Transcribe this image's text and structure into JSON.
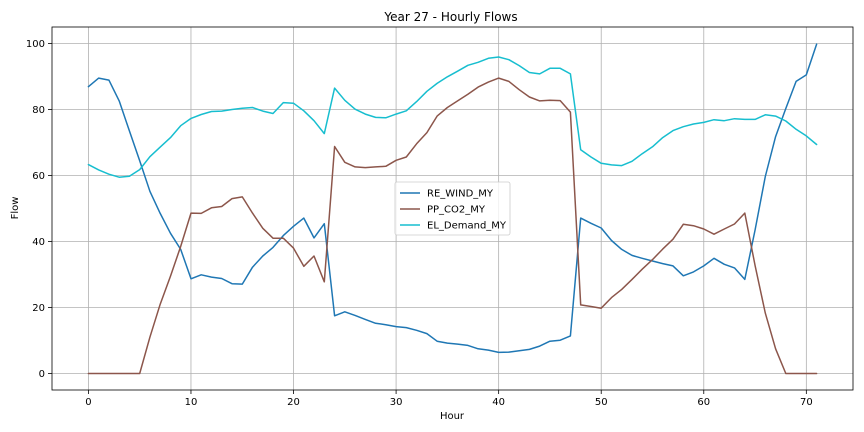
{
  "chart_data": {
    "type": "line",
    "title": "Year 27 - Hourly Flows",
    "xlabel": "Hour",
    "ylabel": "Flow",
    "xlim": [
      -3.55,
      74.55
    ],
    "ylim": [
      -5,
      105
    ],
    "xticks": [
      0,
      10,
      20,
      30,
      40,
      50,
      60,
      70
    ],
    "yticks": [
      0,
      20,
      40,
      60,
      80,
      100
    ],
    "grid": true,
    "legend_position": "center",
    "x": [
      0,
      1,
      2,
      3,
      4,
      5,
      6,
      7,
      8,
      9,
      10,
      11,
      12,
      13,
      14,
      15,
      16,
      17,
      18,
      19,
      20,
      21,
      22,
      23,
      24,
      25,
      26,
      27,
      28,
      29,
      30,
      31,
      32,
      33,
      34,
      35,
      36,
      37,
      38,
      39,
      40,
      41,
      42,
      43,
      44,
      45,
      46,
      47,
      48,
      49,
      50,
      51,
      52,
      53,
      54,
      55,
      56,
      57,
      58,
      59,
      60,
      61,
      62,
      63,
      64,
      65,
      66,
      67,
      68,
      69,
      70,
      71
    ],
    "series": [
      {
        "name": "RE_WIND_MY",
        "color": "#1f77b4",
        "values": [
          86.9,
          89.5,
          88.9,
          82.6,
          73.5,
          64.5,
          55.2,
          48.5,
          42.5,
          37.6,
          28.7,
          29.9,
          29.2,
          28.8,
          27.2,
          27.1,
          32.2,
          35.6,
          38.2,
          41.8,
          44.6,
          47.1,
          41.1,
          45.4,
          17.5,
          18.7,
          17.6,
          16.4,
          15.2,
          14.8,
          14.2,
          13.9,
          13.1,
          12.1,
          9.8,
          9.2,
          8.9,
          8.5,
          7.5,
          7.1,
          6.4,
          6.5,
          6.9,
          7.3,
          8.3,
          9.8,
          10.1,
          11.4,
          47.1,
          45.5,
          44.1,
          40.3,
          37.6,
          35.8,
          34.9,
          34.1,
          33.3,
          32.6,
          29.6,
          30.8,
          32.6,
          34.9,
          33.1,
          32.0,
          28.5,
          43.5,
          59.7,
          71.8,
          80.3,
          88.5,
          90.5,
          99.8
        ]
      },
      {
        "name": "PP_CO2_MY",
        "color": "#8c564b",
        "values": [
          0,
          0,
          0,
          0,
          0,
          0,
          11.0,
          21.0,
          29.5,
          38.5,
          48.6,
          48.5,
          50.2,
          50.6,
          53.0,
          53.5,
          48.6,
          44.0,
          41.0,
          41.0,
          38.0,
          32.5,
          35.6,
          27.8,
          68.8,
          64.0,
          62.6,
          62.4,
          62.6,
          62.8,
          64.6,
          65.6,
          69.6,
          73.0,
          78.0,
          80.6,
          82.6,
          84.6,
          86.8,
          88.3,
          89.5,
          88.5,
          86.0,
          83.8,
          82.6,
          82.8,
          82.7,
          79.2,
          20.8,
          20.3,
          19.8,
          23.0,
          25.5,
          28.5,
          31.6,
          34.5,
          37.7,
          40.7,
          45.2,
          44.8,
          43.8,
          42.2,
          43.8,
          45.3,
          48.6,
          32.7,
          18.3,
          7.5,
          0,
          0,
          0,
          0
        ]
      },
      {
        "name": "EL_Demand_MY",
        "color": "#17becf",
        "values": [
          63.3,
          61.7,
          60.4,
          59.5,
          59.8,
          61.8,
          65.7,
          68.6,
          71.5,
          75.1,
          77.3,
          78.5,
          79.4,
          79.5,
          80.0,
          80.4,
          80.6,
          79.5,
          78.8,
          82.1,
          81.9,
          79.6,
          76.6,
          72.7,
          86.5,
          82.8,
          80.1,
          78.6,
          77.6,
          77.5,
          78.6,
          79.6,
          82.4,
          85.5,
          87.9,
          89.9,
          91.6,
          93.4,
          94.3,
          95.5,
          95.9,
          95.1,
          93.3,
          91.2,
          90.8,
          92.5,
          92.5,
          90.8,
          67.8,
          65.6,
          63.7,
          63.2,
          63.0,
          64.3,
          66.6,
          68.7,
          71.5,
          73.6,
          74.8,
          75.6,
          76.1,
          76.9,
          76.6,
          77.2,
          77.0,
          77.0,
          78.4,
          78.0,
          76.5,
          74.0,
          72.0,
          69.4
        ]
      }
    ]
  }
}
